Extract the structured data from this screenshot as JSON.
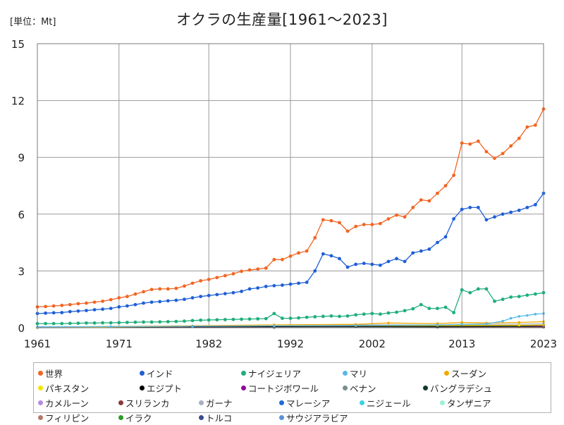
{
  "chart_data": {
    "type": "line",
    "title": "オクラの生産量[1961～2023]",
    "unit_label": "[単位：Mt]",
    "xlabel": "",
    "ylabel": "",
    "xlim": [
      1961,
      2023
    ],
    "ylim": [
      0,
      15
    ],
    "x_ticks": [
      1961,
      1971,
      1982,
      1992,
      2002,
      2013,
      2023
    ],
    "y_ticks": [
      0,
      3,
      6,
      9,
      12,
      15
    ],
    "grid": true,
    "legend_position": "bottom",
    "series": [
      {
        "name": "世界",
        "color": "#f26522",
        "points": [
          [
            1961,
            1.1
          ],
          [
            1962,
            1.12
          ],
          [
            1963,
            1.15
          ],
          [
            1964,
            1.18
          ],
          [
            1965,
            1.22
          ],
          [
            1966,
            1.27
          ],
          [
            1967,
            1.3
          ],
          [
            1968,
            1.35
          ],
          [
            1969,
            1.4
          ],
          [
            1970,
            1.48
          ],
          [
            1971,
            1.58
          ],
          [
            1972,
            1.65
          ],
          [
            1973,
            1.78
          ],
          [
            1974,
            1.9
          ],
          [
            1975,
            2.02
          ],
          [
            1976,
            2.05
          ],
          [
            1977,
            2.05
          ],
          [
            1978,
            2.08
          ],
          [
            1979,
            2.2
          ],
          [
            1980,
            2.35
          ],
          [
            1981,
            2.48
          ],
          [
            1982,
            2.55
          ],
          [
            1983,
            2.65
          ],
          [
            1984,
            2.75
          ],
          [
            1985,
            2.85
          ],
          [
            1986,
            2.98
          ],
          [
            1987,
            3.05
          ],
          [
            1988,
            3.1
          ],
          [
            1989,
            3.15
          ],
          [
            1990,
            3.6
          ],
          [
            1991,
            3.6
          ],
          [
            1992,
            3.78
          ],
          [
            1993,
            3.95
          ],
          [
            1994,
            4.05
          ],
          [
            1995,
            4.75
          ],
          [
            1996,
            5.7
          ],
          [
            1997,
            5.65
          ],
          [
            1998,
            5.55
          ],
          [
            1999,
            5.1
          ],
          [
            2000,
            5.35
          ],
          [
            2001,
            5.45
          ],
          [
            2002,
            5.45
          ],
          [
            2003,
            5.5
          ],
          [
            2004,
            5.75
          ],
          [
            2005,
            5.95
          ],
          [
            2006,
            5.85
          ],
          [
            2007,
            6.35
          ],
          [
            2008,
            6.75
          ],
          [
            2009,
            6.7
          ],
          [
            2010,
            7.1
          ],
          [
            2011,
            7.5
          ],
          [
            2012,
            8.05
          ],
          [
            2013,
            9.75
          ],
          [
            2014,
            9.7
          ],
          [
            2015,
            9.85
          ],
          [
            2016,
            9.3
          ],
          [
            2017,
            8.95
          ],
          [
            2018,
            9.2
          ],
          [
            2019,
            9.6
          ],
          [
            2020,
            10.0
          ],
          [
            2021,
            10.6
          ],
          [
            2022,
            10.7
          ],
          [
            2023,
            11.55
          ]
        ]
      },
      {
        "name": "インド",
        "color": "#1f5fd6",
        "points": [
          [
            1961,
            0.75
          ],
          [
            1962,
            0.77
          ],
          [
            1963,
            0.79
          ],
          [
            1964,
            0.8
          ],
          [
            1965,
            0.85
          ],
          [
            1966,
            0.88
          ],
          [
            1967,
            0.91
          ],
          [
            1968,
            0.95
          ],
          [
            1969,
            0.98
          ],
          [
            1970,
            1.02
          ],
          [
            1971,
            1.1
          ],
          [
            1972,
            1.15
          ],
          [
            1973,
            1.22
          ],
          [
            1974,
            1.3
          ],
          [
            1975,
            1.35
          ],
          [
            1976,
            1.38
          ],
          [
            1977,
            1.42
          ],
          [
            1978,
            1.45
          ],
          [
            1979,
            1.5
          ],
          [
            1980,
            1.58
          ],
          [
            1981,
            1.65
          ],
          [
            1982,
            1.7
          ],
          [
            1983,
            1.75
          ],
          [
            1984,
            1.8
          ],
          [
            1985,
            1.85
          ],
          [
            1986,
            1.92
          ],
          [
            1987,
            2.05
          ],
          [
            1988,
            2.1
          ],
          [
            1989,
            2.18
          ],
          [
            1990,
            2.22
          ],
          [
            1991,
            2.25
          ],
          [
            1992,
            2.3
          ],
          [
            1993,
            2.35
          ],
          [
            1994,
            2.4
          ],
          [
            1995,
            3.0
          ],
          [
            1996,
            3.9
          ],
          [
            1997,
            3.8
          ],
          [
            1998,
            3.65
          ],
          [
            1999,
            3.2
          ],
          [
            2000,
            3.35
          ],
          [
            2001,
            3.4
          ],
          [
            2002,
            3.35
          ],
          [
            2003,
            3.3
          ],
          [
            2004,
            3.5
          ],
          [
            2005,
            3.65
          ],
          [
            2006,
            3.5
          ],
          [
            2007,
            3.95
          ],
          [
            2008,
            4.05
          ],
          [
            2009,
            4.15
          ],
          [
            2010,
            4.5
          ],
          [
            2011,
            4.8
          ],
          [
            2012,
            5.75
          ],
          [
            2013,
            6.25
          ],
          [
            2014,
            6.35
          ],
          [
            2015,
            6.35
          ],
          [
            2016,
            5.7
          ],
          [
            2017,
            5.85
          ],
          [
            2018,
            6.0
          ],
          [
            2019,
            6.1
          ],
          [
            2020,
            6.2
          ],
          [
            2021,
            6.35
          ],
          [
            2022,
            6.5
          ],
          [
            2023,
            7.1
          ]
        ]
      },
      {
        "name": "ナイジェリア",
        "color": "#1fae7a",
        "points": [
          [
            1961,
            0.22
          ],
          [
            1962,
            0.22
          ],
          [
            1963,
            0.22
          ],
          [
            1964,
            0.22
          ],
          [
            1965,
            0.23
          ],
          [
            1966,
            0.24
          ],
          [
            1967,
            0.25
          ],
          [
            1968,
            0.25
          ],
          [
            1969,
            0.26
          ],
          [
            1970,
            0.26
          ],
          [
            1971,
            0.27
          ],
          [
            1972,
            0.28
          ],
          [
            1973,
            0.29
          ],
          [
            1974,
            0.3
          ],
          [
            1975,
            0.3
          ],
          [
            1976,
            0.31
          ],
          [
            1977,
            0.32
          ],
          [
            1978,
            0.33
          ],
          [
            1979,
            0.35
          ],
          [
            1980,
            0.38
          ],
          [
            1981,
            0.4
          ],
          [
            1982,
            0.41
          ],
          [
            1983,
            0.42
          ],
          [
            1984,
            0.43
          ],
          [
            1985,
            0.44
          ],
          [
            1986,
            0.45
          ],
          [
            1987,
            0.46
          ],
          [
            1988,
            0.47
          ],
          [
            1989,
            0.48
          ],
          [
            1990,
            0.75
          ],
          [
            1991,
            0.5
          ],
          [
            1992,
            0.5
          ],
          [
            1993,
            0.52
          ],
          [
            1994,
            0.55
          ],
          [
            1995,
            0.58
          ],
          [
            1996,
            0.6
          ],
          [
            1997,
            0.62
          ],
          [
            1998,
            0.6
          ],
          [
            1999,
            0.62
          ],
          [
            2000,
            0.68
          ],
          [
            2001,
            0.72
          ],
          [
            2002,
            0.75
          ],
          [
            2003,
            0.72
          ],
          [
            2004,
            0.78
          ],
          [
            2005,
            0.82
          ],
          [
            2006,
            0.9
          ],
          [
            2007,
            1.0
          ],
          [
            2008,
            1.22
          ],
          [
            2009,
            1.02
          ],
          [
            2010,
            1.02
          ],
          [
            2011,
            1.08
          ],
          [
            2012,
            0.8
          ],
          [
            2013,
            2.0
          ],
          [
            2014,
            1.85
          ],
          [
            2015,
            2.05
          ],
          [
            2016,
            2.05
          ],
          [
            2017,
            1.4
          ],
          [
            2018,
            1.5
          ],
          [
            2019,
            1.62
          ],
          [
            2020,
            1.65
          ],
          [
            2021,
            1.72
          ],
          [
            2022,
            1.78
          ],
          [
            2023,
            1.85
          ]
        ]
      },
      {
        "name": "マリ",
        "color": "#58b8e8",
        "points": [
          [
            1961,
            0.05
          ],
          [
            1970,
            0.06
          ],
          [
            1980,
            0.08
          ],
          [
            1990,
            0.1
          ],
          [
            2000,
            0.12
          ],
          [
            2010,
            0.15
          ],
          [
            2013,
            0.18
          ],
          [
            2016,
            0.2
          ],
          [
            2018,
            0.35
          ],
          [
            2019,
            0.5
          ],
          [
            2020,
            0.6
          ],
          [
            2021,
            0.65
          ],
          [
            2022,
            0.72
          ],
          [
            2023,
            0.75
          ]
        ]
      },
      {
        "name": "スーダン",
        "color": "#f2a800",
        "points": [
          [
            1961,
            0.03
          ],
          [
            1980,
            0.1
          ],
          [
            1990,
            0.15
          ],
          [
            2000,
            0.18
          ],
          [
            2004,
            0.25
          ],
          [
            2010,
            0.22
          ],
          [
            2013,
            0.28
          ],
          [
            2016,
            0.25
          ],
          [
            2020,
            0.28
          ],
          [
            2023,
            0.32
          ]
        ]
      },
      {
        "name": "パキスタン",
        "color": "#f5e400",
        "points": [
          [
            1961,
            0.02
          ],
          [
            1980,
            0.08
          ],
          [
            1990,
            0.1
          ],
          [
            2000,
            0.11
          ],
          [
            2010,
            0.12
          ],
          [
            2020,
            0.13
          ],
          [
            2023,
            0.14
          ]
        ]
      },
      {
        "name": "エジプト",
        "color": "#000000",
        "points": [
          [
            1961,
            0.03
          ],
          [
            1980,
            0.05
          ],
          [
            1990,
            0.06
          ],
          [
            2000,
            0.07
          ],
          [
            2010,
            0.07
          ],
          [
            2020,
            0.1
          ],
          [
            2023,
            0.13
          ]
        ]
      },
      {
        "name": "コートジボワール",
        "color": "#8e0b9b",
        "points": [
          [
            1961,
            0.02
          ],
          [
            1980,
            0.05
          ],
          [
            1990,
            0.06
          ],
          [
            2000,
            0.08
          ],
          [
            2010,
            0.09
          ],
          [
            2020,
            0.1
          ],
          [
            2023,
            0.1
          ]
        ]
      },
      {
        "name": "ベナン",
        "color": "#7a8c8c",
        "points": [
          [
            1961,
            0.01
          ],
          [
            1990,
            0.03
          ],
          [
            2010,
            0.06
          ],
          [
            2023,
            0.09
          ]
        ]
      },
      {
        "name": "バングラデシュ",
        "color": "#0d3a2a",
        "points": [
          [
            1961,
            0.01
          ],
          [
            1990,
            0.03
          ],
          [
            2010,
            0.05
          ],
          [
            2023,
            0.07
          ]
        ]
      },
      {
        "name": "カメルーン",
        "color": "#b58be0",
        "points": [
          [
            1961,
            0.01
          ],
          [
            1990,
            0.04
          ],
          [
            2010,
            0.06
          ],
          [
            2023,
            0.08
          ]
        ]
      },
      {
        "name": "スリランカ",
        "color": "#8b3a3a",
        "points": [
          [
            1961,
            0.01
          ],
          [
            1990,
            0.02
          ],
          [
            2010,
            0.03
          ],
          [
            2023,
            0.04
          ]
        ]
      },
      {
        "name": "ガーナ",
        "color": "#a9aec6",
        "points": [
          [
            1961,
            0.02
          ],
          [
            1990,
            0.12
          ],
          [
            2000,
            0.15
          ],
          [
            2010,
            0.15
          ],
          [
            2023,
            0.2
          ]
        ]
      },
      {
        "name": "マレーシア",
        "color": "#1f6cd9",
        "points": [
          [
            1961,
            0.01
          ],
          [
            1990,
            0.02
          ],
          [
            2010,
            0.03
          ],
          [
            2023,
            0.03
          ]
        ]
      },
      {
        "name": "ニジェール",
        "color": "#3dd2e3",
        "points": [
          [
            1961,
            0.01
          ],
          [
            1990,
            0.04
          ],
          [
            2010,
            0.06
          ],
          [
            2023,
            0.08
          ]
        ]
      },
      {
        "name": "タンザニア",
        "color": "#9ff0d8",
        "points": [
          [
            1961,
            0.01
          ],
          [
            1990,
            0.03
          ],
          [
            2010,
            0.05
          ],
          [
            2023,
            0.07
          ]
        ]
      },
      {
        "name": "フィリピン",
        "color": "#b37a66",
        "points": [
          [
            1961,
            0.01
          ],
          [
            1990,
            0.02
          ],
          [
            2010,
            0.03
          ],
          [
            2023,
            0.03
          ]
        ]
      },
      {
        "name": "イラク",
        "color": "#2a9d2a",
        "points": [
          [
            1961,
            0.01
          ],
          [
            1990,
            0.03
          ],
          [
            2010,
            0.04
          ],
          [
            2023,
            0.05
          ]
        ]
      },
      {
        "name": "トルコ",
        "color": "#3a4c8c",
        "points": [
          [
            1961,
            0.01
          ],
          [
            1990,
            0.02
          ],
          [
            2010,
            0.03
          ],
          [
            2023,
            0.03
          ]
        ]
      },
      {
        "name": "サウジアラビア",
        "color": "#5b8fd6",
        "points": [
          [
            1961,
            0.0
          ],
          [
            1990,
            0.02
          ],
          [
            2010,
            0.03
          ],
          [
            2023,
            0.03
          ]
        ]
      }
    ]
  }
}
